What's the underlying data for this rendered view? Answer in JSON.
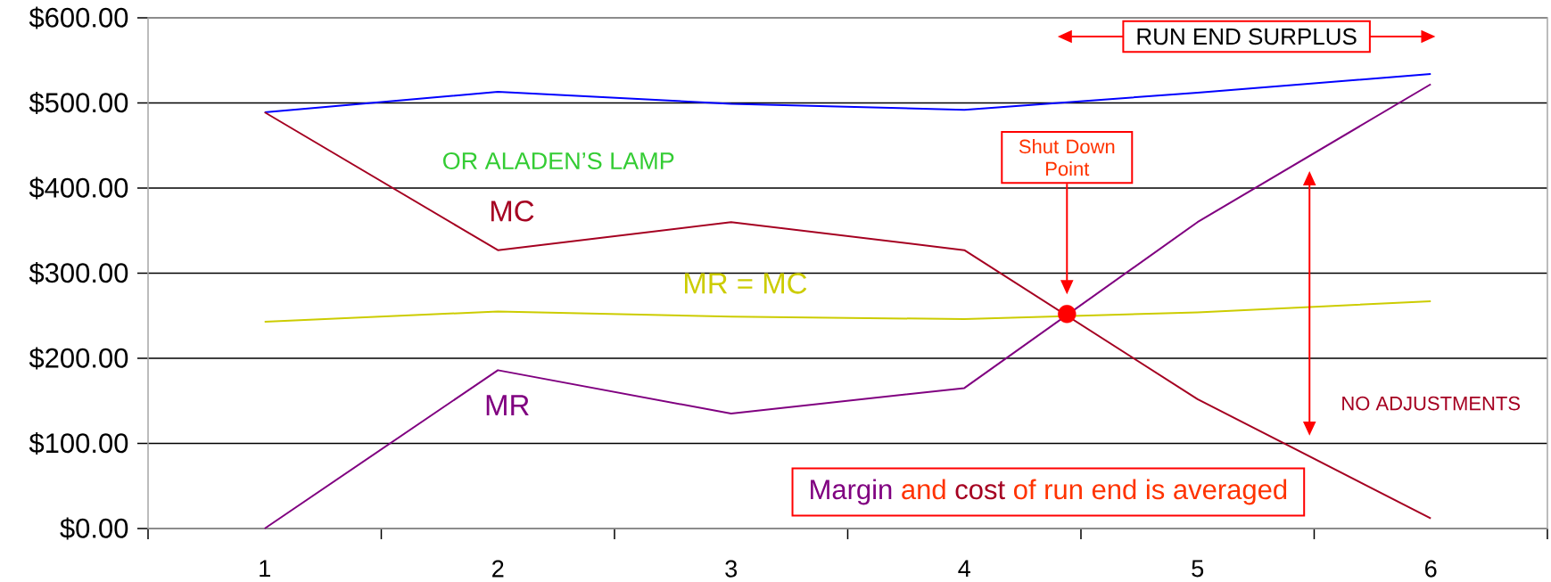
{
  "chart_data": {
    "type": "line",
    "x": [
      1,
      2,
      3,
      4,
      5,
      6
    ],
    "series": [
      {
        "color": "#0000ff",
        "values": [
          489,
          513,
          499,
          492,
          512,
          534
        ]
      },
      {
        "name": "MC",
        "color": "#a50021",
        "values": [
          489,
          327,
          360,
          327,
          152,
          12
        ]
      },
      {
        "name": "MR",
        "color": "#800080",
        "values": [
          0,
          186,
          135,
          165,
          360,
          522
        ]
      },
      {
        "name": "MR = MC",
        "color": "#cccc00",
        "values": [
          243,
          255,
          249,
          246,
          254,
          267
        ]
      },
      {
        "type": "scatter",
        "color": "#ff0000",
        "x": [
          4.44
        ],
        "values": [
          252
        ]
      }
    ],
    "xlim": [
      0.5,
      6.5
    ],
    "xticks": [
      {
        "value": 0.5,
        "label": null
      },
      1,
      {
        "value": 1.5,
        "label": null
      },
      2,
      {
        "value": 2.5,
        "label": null
      },
      3,
      {
        "value": 3.5,
        "label": null
      },
      4,
      {
        "value": 4.5,
        "label": null
      },
      5,
      {
        "value": 5.5,
        "label": null
      },
      6,
      {
        "value": 6.5,
        "label": null
      }
    ],
    "ylim": [
      0,
      600
    ],
    "yticks": [
      {
        "value": 0,
        "label": "$0.00"
      },
      {
        "value": 100,
        "label": "$100.00"
      },
      {
        "value": 200,
        "label": "$200.00"
      },
      {
        "value": 300,
        "label": "$300.00"
      },
      {
        "value": 400,
        "label": "$400.00"
      },
      {
        "value": 500,
        "label": "$500.00"
      },
      {
        "value": 600,
        "label": "$600.00"
      }
    ],
    "grid": "y",
    "annotations": [
      "OR ALADEN’S LAMP",
      "RUN END SURPLUS",
      "Shut Down Point",
      "NO ADJUSTMENTS",
      "Margin",
      "and",
      "cost",
      "of run end is averaged"
    ]
  }
}
